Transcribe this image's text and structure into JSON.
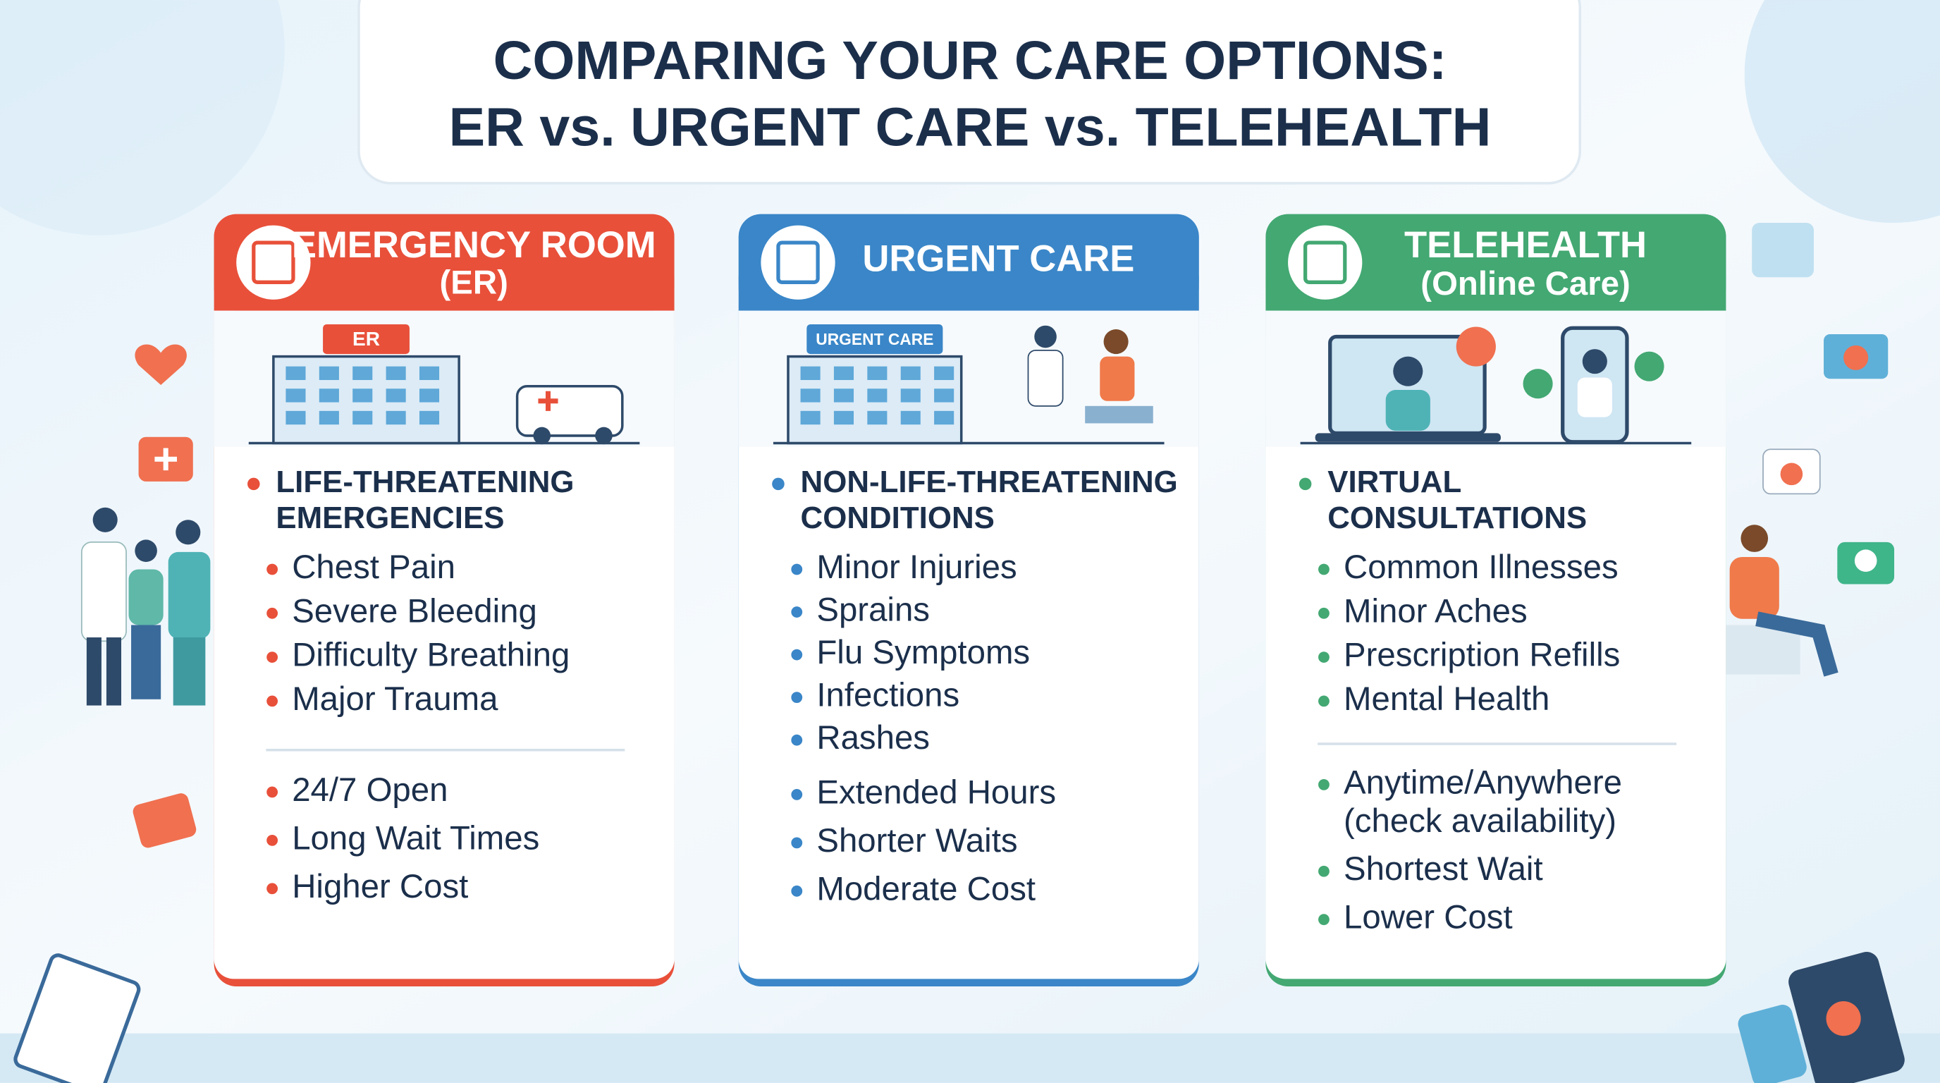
{
  "header": {
    "title_lines": [
      "COMPARING YOUR CARE OPTIONS:",
      "ER vs. URGENT CARE vs. TELEHEALTH"
    ]
  },
  "cards": [
    {
      "title": "EMERGENCY ROOM",
      "subtitle": "(ER)",
      "sign": "ER",
      "color": "#e8503a",
      "heading": [
        "LIFE-THREATENING",
        "EMERGENCIES"
      ],
      "items": [
        "Chest Pain",
        "Severe Bleeding",
        "Difficulty Breathing",
        "Major Trauma"
      ],
      "details": [
        {
          "text": "24/7 Open"
        },
        {
          "text": "Long Wait Times"
        },
        {
          "text": "Higher Cost"
        }
      ]
    },
    {
      "title": "URGENT CARE",
      "sign": "URGENT CARE",
      "color": "#3a86c8",
      "heading": [
        "NON-LIFE-THREATENING",
        "CONDITIONS"
      ],
      "items": [
        "Minor Injuries",
        "Sprains",
        "Flu Symptoms",
        "Infections",
        "Rashes"
      ],
      "details": [
        {
          "text": "Extended Hours"
        },
        {
          "text": "Shorter Waits"
        },
        {
          "text": "Moderate Cost"
        }
      ]
    },
    {
      "title": "TELEHEALTH",
      "subtitle": "(Online Care)",
      "color": "#43a872",
      "heading": [
        "VIRTUAL",
        "CONSULTATIONS"
      ],
      "items": [
        "Common Illnesses",
        "Minor Aches",
        "Prescription Refills",
        "Mental Health"
      ],
      "details": [
        {
          "text": "Anytime/Anywhere",
          "note": "(check availability)"
        },
        {
          "text": "Shortest Wait"
        },
        {
          "text": "Lower Cost"
        }
      ]
    }
  ]
}
